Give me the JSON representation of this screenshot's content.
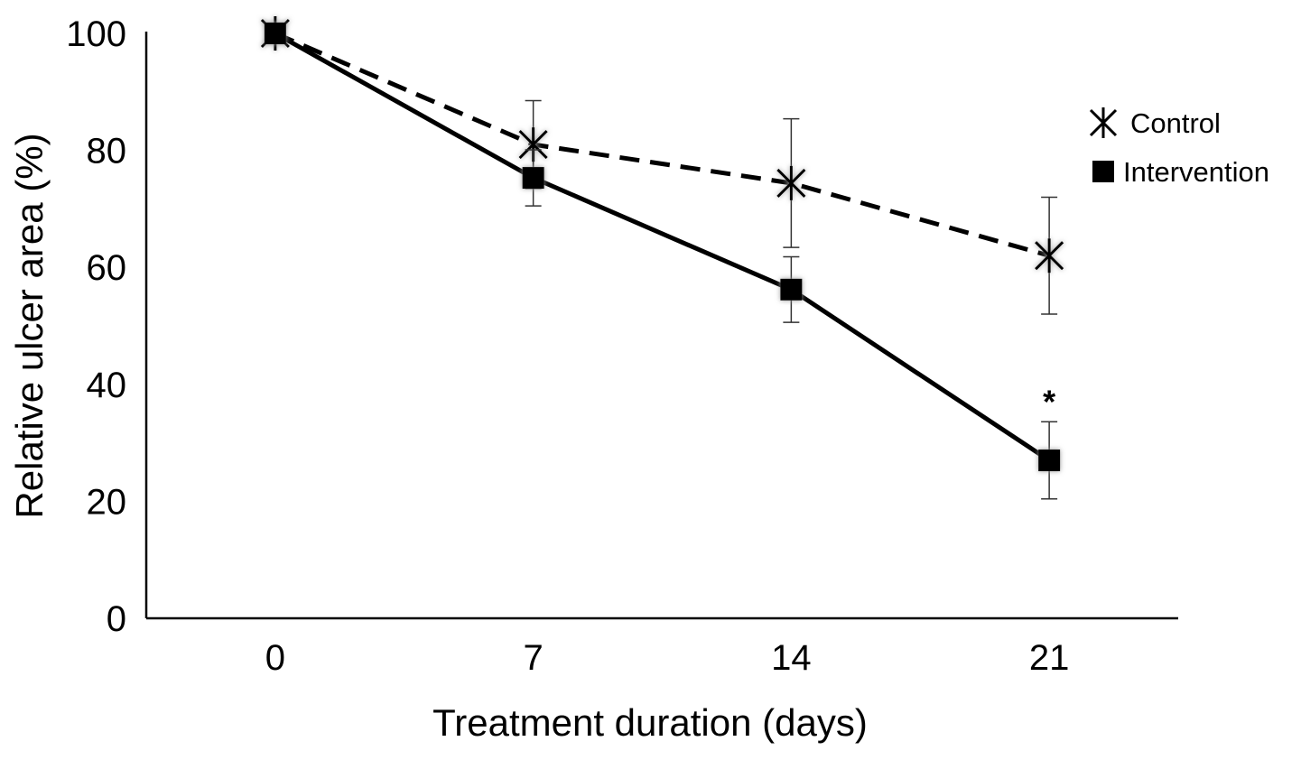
{
  "chart_data": {
    "type": "line",
    "title": "",
    "xlabel": "Treatment duration (days)",
    "ylabel": "Relative ulcer area (%)",
    "categories": [
      "0",
      "7",
      "14",
      "21"
    ],
    "x": [
      0,
      7,
      14,
      21
    ],
    "ylim": [
      0,
      100
    ],
    "yticks": [
      "0",
      "20",
      "40",
      "60",
      "80",
      "100"
    ],
    "grid": false,
    "legend_position": "right",
    "series": [
      {
        "name": "Control",
        "marker": "asterisk",
        "line": "dashed",
        "values": [
          100,
          81,
          74.4,
          62
        ],
        "error": [
          0,
          7.5,
          11,
          10
        ]
      },
      {
        "name": "Intervention",
        "marker": "square",
        "line": "solid",
        "values": [
          100,
          75.3,
          56.2,
          27
        ],
        "error": [
          0,
          4.8,
          5.6,
          6.6
        ]
      }
    ],
    "annotations": [
      {
        "text": "*",
        "x": 21,
        "series": "Intervention"
      }
    ]
  }
}
